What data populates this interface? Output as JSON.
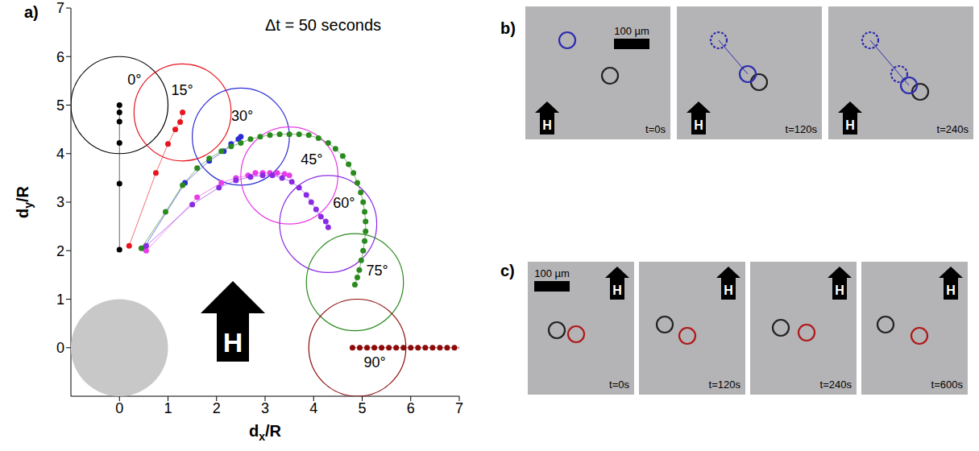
{
  "chart_data": {
    "type": "scatter",
    "panel_label": "a)",
    "annotation": "Δt = 50 seconds",
    "field_label": "H",
    "xlabel": "dx/R",
    "ylabel": "dy/R",
    "xlim": [
      -1,
      7
    ],
    "ylim": [
      -1,
      7
    ],
    "xticks": [
      0,
      1,
      2,
      3,
      4,
      5,
      6,
      7
    ],
    "yticks": [
      0,
      1,
      2,
      3,
      4,
      5,
      6,
      7
    ],
    "radius": 1,
    "fixed_particle": [
      0,
      0
    ],
    "series": [
      {
        "name": "0°",
        "color": "#000000",
        "circle": [
          0,
          5
        ],
        "x": [
          0,
          0,
          0,
          0,
          0,
          0
        ],
        "values": [
          2.02,
          3.38,
          4.22,
          4.66,
          4.85,
          5.0
        ]
      },
      {
        "name": "15°",
        "color": "#e8141e",
        "circle": [
          1.3,
          4.85
        ],
        "x": [
          0.2,
          0.75,
          1.0,
          1.15,
          1.25,
          1.3
        ],
        "values": [
          2.1,
          3.6,
          4.2,
          4.5,
          4.65,
          4.85
        ]
      },
      {
        "name": "30°",
        "color": "#2b2bd6",
        "circle": [
          2.5,
          4.35
        ],
        "x": [
          0.5,
          1.35,
          1.85,
          2.15,
          2.3,
          2.45,
          2.5
        ],
        "values": [
          2.05,
          3.4,
          3.85,
          4.05,
          4.2,
          4.3,
          4.35
        ]
      },
      {
        "name": "45°",
        "color": "#e83ce8",
        "circle": [
          3.5,
          3.55
        ],
        "x": [
          0.55,
          1.6,
          2.1,
          2.4,
          2.65,
          2.8,
          2.95,
          3.1,
          3.25,
          3.4,
          3.5
        ],
        "values": [
          2.0,
          3.1,
          3.4,
          3.5,
          3.55,
          3.6,
          3.6,
          3.6,
          3.6,
          3.58,
          3.55
        ]
      },
      {
        "name": "60°",
        "color": "#8a2be2",
        "circle": [
          4.3,
          2.55
        ],
        "x": [
          0.55,
          1.5,
          2.05,
          2.4,
          2.7,
          2.95,
          3.15,
          3.35,
          3.55,
          3.7,
          3.85,
          3.95,
          4.05,
          4.15,
          4.25,
          4.3
        ],
        "values": [
          2.1,
          2.95,
          3.3,
          3.45,
          3.52,
          3.55,
          3.55,
          3.5,
          3.42,
          3.3,
          3.15,
          3.0,
          2.85,
          2.7,
          2.6,
          2.48
        ]
      },
      {
        "name": "75°",
        "color": "#2a8a1e",
        "circle": [
          4.85,
          1.35
        ],
        "x": [
          0.45,
          0.95,
          1.3,
          1.6,
          1.85,
          2.1,
          2.3,
          2.5,
          2.7,
          2.9,
          3.1,
          3.3,
          3.5,
          3.7,
          3.9,
          4.1,
          4.3,
          4.45,
          4.6,
          4.72,
          4.82,
          4.9,
          4.97,
          5.02,
          5.05,
          5.07,
          5.07,
          5.05,
          5.02,
          4.98,
          4.94,
          4.9,
          4.85
        ],
        "values": [
          2.05,
          2.8,
          3.35,
          3.7,
          3.9,
          4.05,
          4.15,
          4.22,
          4.3,
          4.35,
          4.38,
          4.4,
          4.4,
          4.4,
          4.38,
          4.32,
          4.22,
          4.1,
          3.95,
          3.78,
          3.6,
          3.4,
          3.2,
          3.0,
          2.8,
          2.6,
          2.4,
          2.2,
          2.0,
          1.8,
          1.6,
          1.45,
          1.3
        ]
      },
      {
        "name": "90°",
        "color": "#8b0a0a",
        "circle": [
          4.9,
          0
        ],
        "x": [
          4.8,
          4.95,
          5.1,
          5.25,
          5.4,
          5.55,
          5.7,
          5.85,
          6.0,
          6.15,
          6.3,
          6.45,
          6.6,
          6.75,
          6.9,
          7.05
        ],
        "values": [
          0,
          0,
          0,
          0,
          0,
          0,
          0,
          0,
          0,
          0,
          0,
          0,
          0,
          0,
          0,
          0
        ]
      }
    ]
  },
  "panels": [
    {
      "label": "b)",
      "scale_bar": "100 µm",
      "field_label": "H",
      "frames": [
        "t=0s",
        "t=120s",
        "t=240s"
      ]
    },
    {
      "label": "c)",
      "scale_bar": "100 µm",
      "field_label": "H",
      "frames": [
        "t=0s",
        "t=120s",
        "t=240s",
        "t=600s"
      ]
    }
  ]
}
